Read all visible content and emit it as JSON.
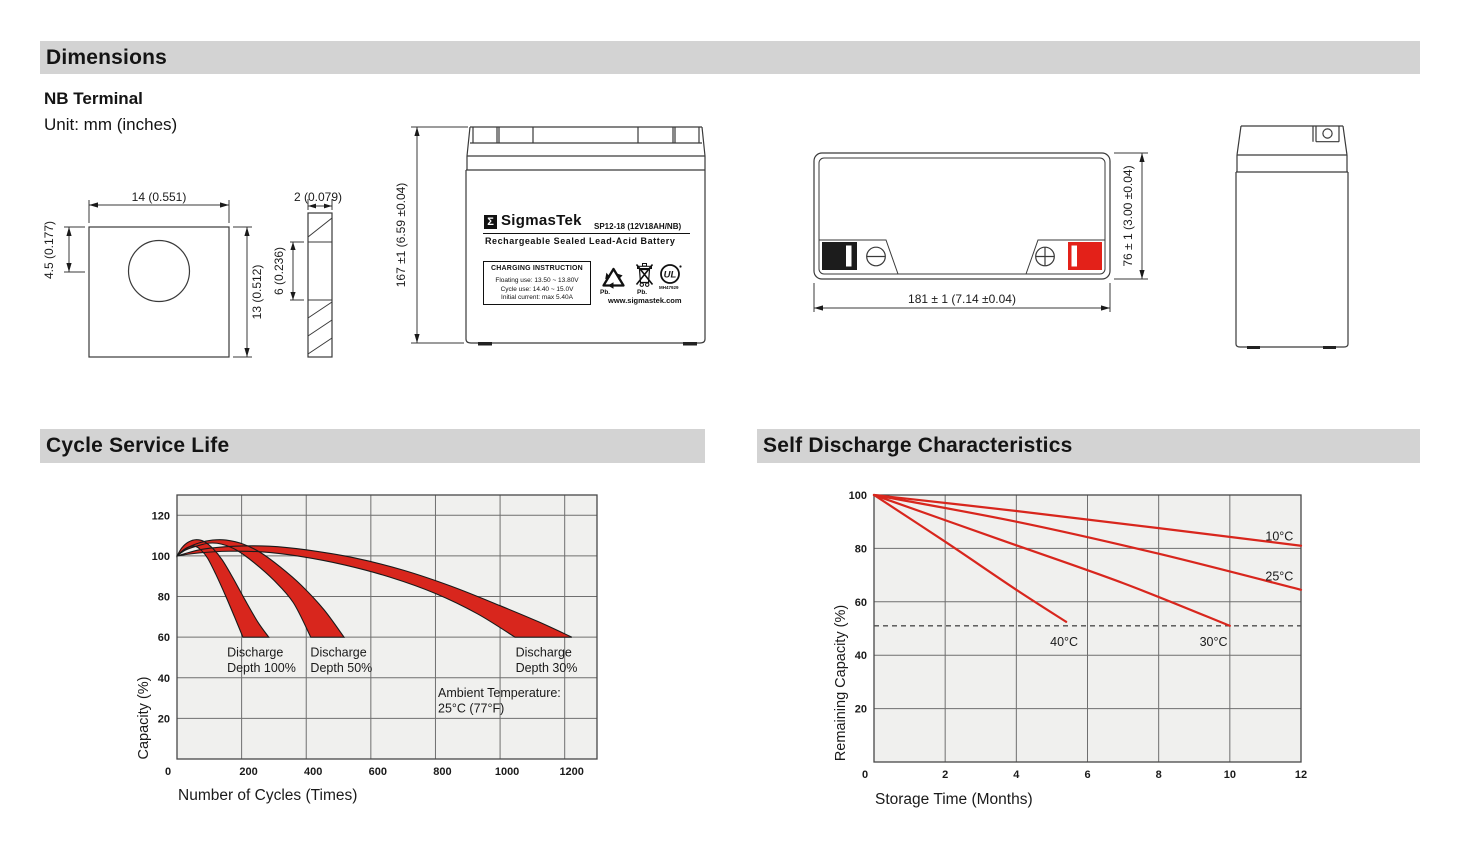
{
  "header": {
    "title": "Dimensions",
    "terminal_type": "NB Terminal",
    "unit": "Unit: mm (inches)"
  },
  "sections": {
    "cycle_life": "Cycle Service Life",
    "self_discharge": "Self Discharge Characteristics"
  },
  "terminal_drawing": {
    "width": "14 (0.551)",
    "hole_offset": "4.5 (0.177)",
    "height": "13 (0.512)",
    "thickness": "2 (0.079)",
    "hole_height": "6 (0.236)"
  },
  "front_view": {
    "height_dim": "167 ±1 (6.59 ±0.04)"
  },
  "top_view": {
    "length_dim": "181 ± 1 (7.14 ±0.04)",
    "width_dim": "76 ± 1 (3.00 ±0.04)"
  },
  "label": {
    "sigma": "Σ",
    "brand": "SigmasTek",
    "model": "SP12-18 (12V18AH/NB)",
    "subtitle": "Rechargeable Sealed Lead-Acid Battery",
    "charging_title": "CHARGING INSTRUCTION",
    "charging_line1": "Floating use: 13.50 ~ 13.80V",
    "charging_line2": "Cycle use: 14.40 ~ 15.0V",
    "charging_line3": "Initial current: max 5.40A",
    "pb_recycle": "Pb.",
    "pb_bin": "Pb.",
    "ul_mark": "UL",
    "ul_code": "MH47929",
    "website": "www.sigmastek.com"
  },
  "chart_data": [
    {
      "type": "area",
      "title": "Cycle Service Life",
      "xlabel": "Number of Cycles (Times)",
      "ylabel": "Capacity (%)",
      "xlim": [
        0,
        1300
      ],
      "ylim": [
        0,
        130
      ],
      "xticks": [
        0,
        200,
        400,
        600,
        800,
        1000,
        1200
      ],
      "yticks": [
        20,
        40,
        60,
        80,
        100,
        120
      ],
      "grid": true,
      "plot_bg": "#f0f0ee",
      "band_color": "#d8261d",
      "bands": [
        {
          "name": "Discharge Depth 100%",
          "upper": [
            [
              0,
              100
            ],
            [
              15,
              104
            ],
            [
              35,
              106.8
            ],
            [
              60,
              108
            ],
            [
              85,
              107
            ],
            [
              112,
              103.5
            ],
            [
              140,
              98
            ],
            [
              172,
              89.5
            ],
            [
              210,
              78.5
            ],
            [
              250,
              67.5
            ],
            [
              284,
              60
            ]
          ],
          "lower": [
            [
              0,
              100
            ],
            [
              15,
              102.3
            ],
            [
              35,
              104.3
            ],
            [
              55,
              104.8
            ],
            [
              75,
              102.8
            ],
            [
              95,
              98.8
            ],
            [
              120,
              91
            ],
            [
              150,
              80.5
            ],
            [
              178,
              70
            ],
            [
              204,
              60
            ]
          ]
        },
        {
          "name": "Discharge Depth 50%",
          "upper": [
            [
              0,
              100
            ],
            [
              30,
              103.8
            ],
            [
              70,
              106.5
            ],
            [
              110,
              107.8
            ],
            [
              152,
              107.8
            ],
            [
              205,
              105.8
            ],
            [
              260,
              101.5
            ],
            [
              320,
              94.5
            ],
            [
              385,
              85.5
            ],
            [
              455,
              73.5
            ],
            [
              517,
              60
            ]
          ],
          "lower": [
            [
              0,
              100
            ],
            [
              25,
              102.8
            ],
            [
              60,
              104.8
            ],
            [
              100,
              106.3
            ],
            [
              138,
              105.8
            ],
            [
              185,
              102.8
            ],
            [
              240,
              96.5
            ],
            [
              300,
              88
            ],
            [
              360,
              77
            ],
            [
              414,
              60
            ]
          ]
        },
        {
          "name": "Discharge Depth 30%",
          "upper": [
            [
              0,
              100
            ],
            [
              80,
              103.3
            ],
            [
              180,
              104.8
            ],
            [
              285,
              104.8
            ],
            [
              400,
              103
            ],
            [
              550,
              99
            ],
            [
              700,
              93
            ],
            [
              850,
              85
            ],
            [
              1000,
              75.5
            ],
            [
              1120,
              67.5
            ],
            [
              1222,
              60
            ]
          ],
          "lower": [
            [
              0,
              100
            ],
            [
              70,
              101.5
            ],
            [
              160,
              102.3
            ],
            [
              260,
              102
            ],
            [
              380,
              99.8
            ],
            [
              520,
              95.5
            ],
            [
              660,
              89.5
            ],
            [
              800,
              81.5
            ],
            [
              930,
              71.5
            ],
            [
              1046,
              60
            ]
          ]
        }
      ],
      "annotations": [
        {
          "lines": [
            "Discharge",
            "Depth 100%"
          ],
          "x": 155,
          "y": 56
        },
        {
          "lines": [
            "Discharge",
            "Depth 50%"
          ],
          "x": 413,
          "y": 56
        },
        {
          "lines": [
            "Discharge",
            "Depth 30%"
          ],
          "x": 1048,
          "y": 56
        },
        {
          "lines": [
            "Ambient Temperature:",
            "25°C (77°F)"
          ],
          "x": 808,
          "y": 36
        }
      ]
    },
    {
      "type": "line",
      "title": "Self Discharge Characteristics",
      "xlabel": "Storage Time (Months)",
      "ylabel": "Remaining Capacity (%)",
      "xlim": [
        0,
        12
      ],
      "ylim": [
        0,
        100
      ],
      "xticks": [
        0,
        2,
        4,
        6,
        8,
        10,
        12
      ],
      "yticks": [
        20,
        40,
        60,
        80,
        100
      ],
      "grid": true,
      "plot_bg": "#f0f0ee",
      "line_color": "#d8261d",
      "series": [
        {
          "name": "10°C",
          "points": [
            [
              0,
              100
            ],
            [
              4,
              94
            ],
            [
              8,
              87.6
            ],
            [
              12,
              81
            ]
          ],
          "label_x": 11.0,
          "label_y": 84.5
        },
        {
          "name": "25°C",
          "points": [
            [
              0,
              100
            ],
            [
              4,
              90
            ],
            [
              8,
              78
            ],
            [
              12,
              64.5
            ]
          ],
          "label_x": 11.0,
          "label_y": 69.5
        },
        {
          "name": "30°C",
          "points": [
            [
              0,
              100
            ],
            [
              3.5,
              83.5
            ],
            [
              7,
              67
            ],
            [
              10,
              51
            ]
          ],
          "label_x": 9.15,
          "label_y": 45
        },
        {
          "name": "40°C",
          "points": [
            [
              0,
              100
            ],
            [
              2,
              82.5
            ],
            [
              4,
              64.5
            ],
            [
              5.4,
              52.5
            ]
          ],
          "label_x": 4.95,
          "label_y": 45
        }
      ],
      "threshold_y": 51
    }
  ]
}
